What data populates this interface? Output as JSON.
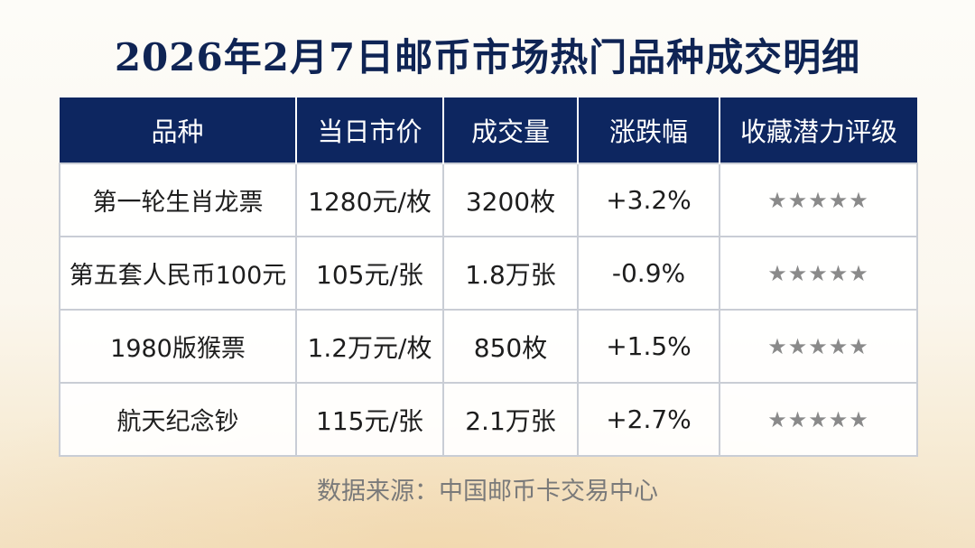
{
  "title": "2026年2月7日邮币市场热门品种成交明细",
  "table": {
    "headers": [
      "品种",
      "当日市价",
      "成交量",
      "涨跌幅",
      "收藏潜力评级"
    ],
    "rows": [
      {
        "name": "第一轮生肖龙票",
        "price": "1280元/枚",
        "volume": "3200枚",
        "change": "+3.2%",
        "rating": "★★★★★"
      },
      {
        "name": "第五套人民币100元",
        "price": "105元/张",
        "volume": "1.8万张",
        "change": "-0.9%",
        "rating": "★★★★★"
      },
      {
        "name": "1980版猴票",
        "price": "1.2万元/枚",
        "volume": "850枚",
        "change": "+1.5%",
        "rating": "★★★★★"
      },
      {
        "name": "航天纪念钞",
        "price": "115元/张",
        "volume": "2.1万张",
        "change": "+2.7%",
        "rating": "★★★★★"
      }
    ]
  },
  "source": "数据来源：中国邮币卡交易中心",
  "colors": {
    "header_bg": "#0d2660",
    "title": "#0f2454",
    "star": "#8a8a8a"
  }
}
